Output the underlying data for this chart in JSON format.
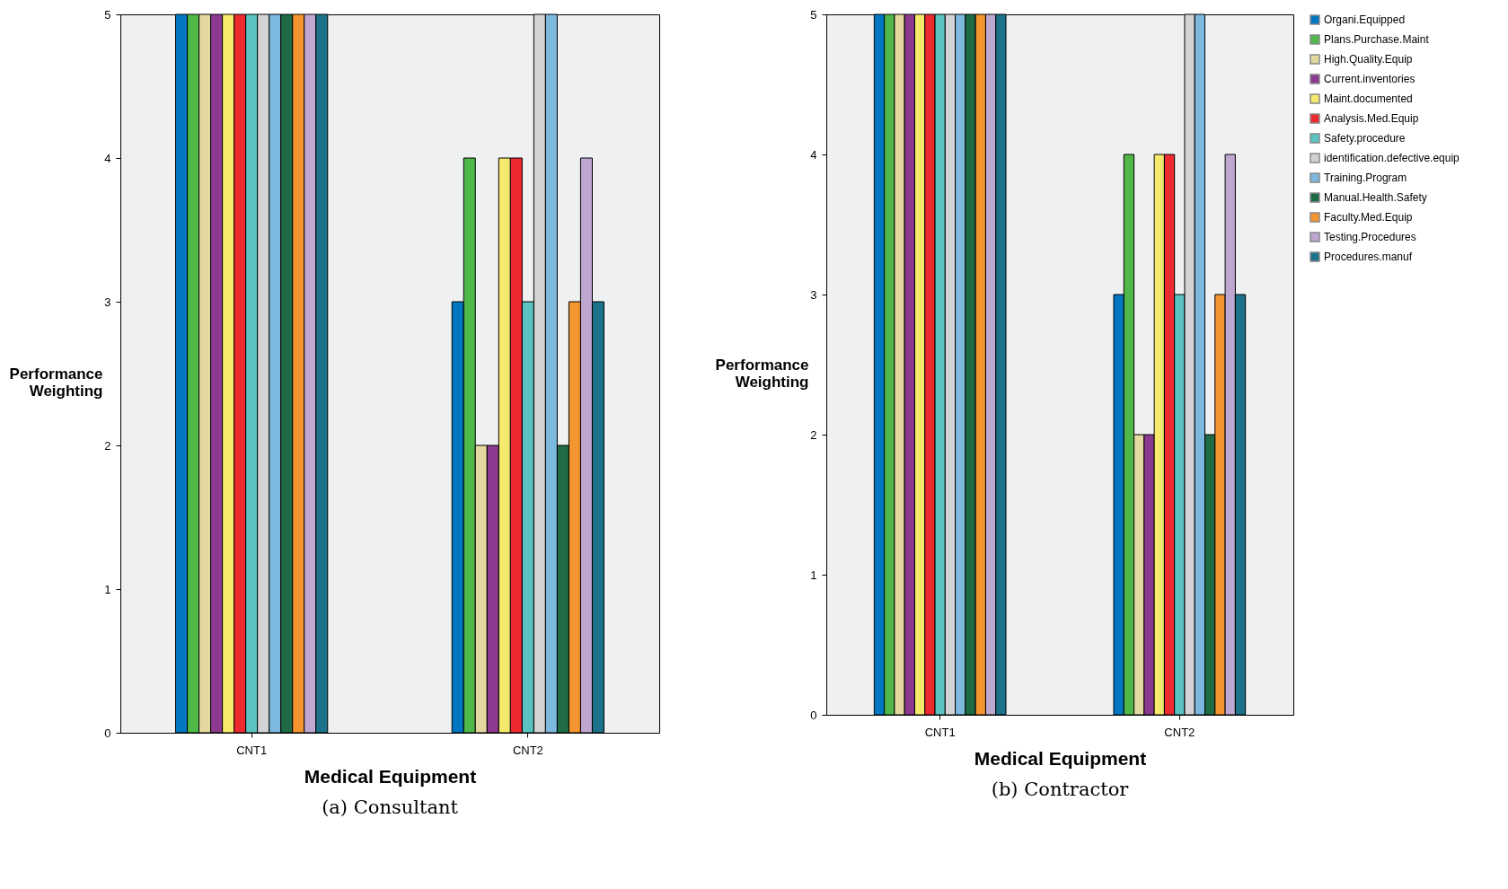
{
  "chart_data": [
    {
      "type": "bar",
      "title": "(a) Consultant",
      "xlabel": "Medical Equipment",
      "ylabel": "Performance Weighting",
      "categories": [
        "CNT1",
        "CNT2"
      ],
      "ylim": [
        0,
        5
      ],
      "yticks": [
        0,
        1,
        2,
        3,
        4,
        5
      ],
      "grid": false,
      "series": [
        {
          "color": "#0077c0",
          "values": [
            5,
            3
          ]
        },
        {
          "color": "#4fb848",
          "values": [
            5,
            4
          ]
        },
        {
          "color": "#e2d8a0",
          "values": [
            5,
            2
          ]
        },
        {
          "color": "#8b3a8f",
          "values": [
            5,
            2
          ]
        },
        {
          "color": "#f6e96b",
          "values": [
            5,
            4
          ]
        },
        {
          "color": "#ee2a31",
          "values": [
            5,
            4
          ]
        },
        {
          "color": "#5bc4c3",
          "values": [
            5,
            3
          ]
        },
        {
          "color": "#d3d3d5",
          "values": [
            5,
            5
          ]
        },
        {
          "color": "#7db8df",
          "values": [
            5,
            5
          ]
        },
        {
          "color": "#1e6b45",
          "values": [
            5,
            2
          ]
        },
        {
          "color": "#f4962f",
          "values": [
            5,
            3
          ]
        },
        {
          "color": "#bea7d0",
          "values": [
            5,
            4
          ]
        },
        {
          "color": "#1b728a",
          "values": [
            5,
            3
          ]
        }
      ]
    },
    {
      "type": "bar",
      "title": "(b) Contractor",
      "xlabel": "Medical Equipment",
      "ylabel": "Performance Weighting",
      "categories": [
        "CNT1",
        "CNT2"
      ],
      "ylim": [
        0,
        5
      ],
      "yticks": [
        0,
        1,
        2,
        3,
        4,
        5
      ],
      "grid": false,
      "legend": "top right",
      "series": [
        {
          "name": "Organi.Equipped",
          "color": "#0077c0",
          "values": [
            5,
            3
          ]
        },
        {
          "name": "Plans.Purchase.Maint",
          "color": "#4fb848",
          "values": [
            5,
            4
          ]
        },
        {
          "name": "High.Quality.Equip",
          "color": "#e2d8a0",
          "values": [
            5,
            2
          ]
        },
        {
          "name": "Current.inventories",
          "color": "#8b3a8f",
          "values": [
            5,
            2
          ]
        },
        {
          "name": "Maint.documented",
          "color": "#f6e96b",
          "values": [
            5,
            4
          ]
        },
        {
          "name": "Analysis.Med.Equip",
          "color": "#ee2a31",
          "values": [
            5,
            4
          ]
        },
        {
          "name": "Safety.procedure",
          "color": "#5bc4c3",
          "values": [
            5,
            3
          ]
        },
        {
          "name": "identification.defective.equip",
          "color": "#d3d3d5",
          "values": [
            5,
            5
          ]
        },
        {
          "name": "Training.Program",
          "color": "#7db8df",
          "values": [
            5,
            5
          ]
        },
        {
          "name": "Manual.Health.Safety",
          "color": "#1e6b45",
          "values": [
            5,
            2
          ]
        },
        {
          "name": "Faculty.Med.Equip",
          "color": "#f4962f",
          "values": [
            5,
            3
          ]
        },
        {
          "name": "Testing.Procedures",
          "color": "#bea7d0",
          "values": [
            5,
            4
          ]
        },
        {
          "name": "Procedures.manuf",
          "color": "#1b728a",
          "values": [
            5,
            3
          ]
        }
      ]
    }
  ]
}
